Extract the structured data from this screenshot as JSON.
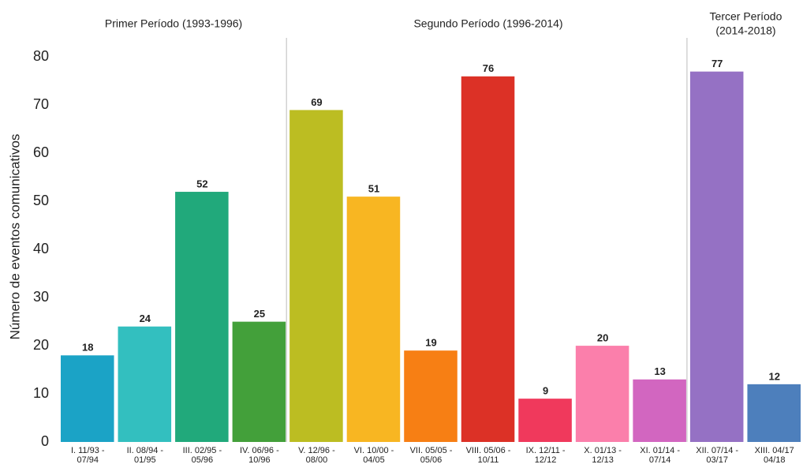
{
  "chart_data": {
    "type": "bar",
    "y_label": "Número de eventos comunicativos",
    "periods": [
      [
        "Primer Período (1993-1996)"
      ],
      [
        "Segundo Período (1996-2014)"
      ],
      [
        "Tercer Período",
        "(2014-2018)"
      ]
    ],
    "categories": [
      [
        "I. 11/93 -",
        "07/94"
      ],
      [
        "II. 08/94 -",
        "01/95"
      ],
      [
        "III. 02/95 -",
        "05/96"
      ],
      [
        "IV. 06/96 -",
        "10/96"
      ],
      [
        "V. 12/96 -",
        "08/00"
      ],
      [
        "VI. 10/00 -",
        "04/05"
      ],
      [
        "VII. 05/05 -",
        "05/06"
      ],
      [
        "VIII. 05/06 -",
        "10/11"
      ],
      [
        "IX. 12/11 -",
        "12/12"
      ],
      [
        "X. 01/13 -",
        "12/13"
      ],
      [
        "XI. 01/14 -",
        "07/14"
      ],
      [
        "XII. 07/14 -",
        "03/17"
      ],
      [
        "XIII. 04/17",
        "04/18"
      ]
    ],
    "values": [
      18,
      24,
      52,
      25,
      69,
      51,
      19,
      76,
      9,
      20,
      13,
      77,
      12
    ],
    "colors": [
      "#1ba3c6",
      "#33bfbf",
      "#21a97b",
      "#43a03a",
      "#bcbd22",
      "#f8b622",
      "#f77f14",
      "#dc3126",
      "#f0395c",
      "#fb7fab",
      "#d266c0",
      "#9571c4",
      "#4d7fbc"
    ],
    "ylim": [
      0,
      84
    ],
    "yticks": [
      0,
      10,
      20,
      30,
      40,
      50,
      60,
      70,
      80
    ],
    "grid": false
  }
}
